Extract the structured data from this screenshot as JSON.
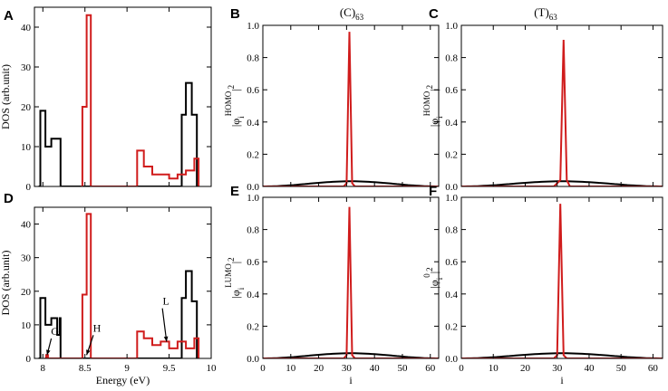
{
  "colors": {
    "red": "#d01c1c",
    "black": "#000000"
  },
  "column_titles": [
    "(C)",
    "63",
    "(T)",
    "63"
  ],
  "chart_data": [
    {
      "id": "A",
      "type": "line",
      "panel_label": "A",
      "xlim": [
        7.9,
        10
      ],
      "ylim": [
        0,
        45
      ],
      "xticks": [
        8,
        8.5,
        9,
        9.5,
        10
      ],
      "xtick_labels": [
        "",
        "",
        "",
        "",
        ""
      ],
      "yticks": [
        0,
        10,
        20,
        30,
        40
      ],
      "ytick_labels": [
        "0",
        "10",
        "20",
        "30",
        "40"
      ],
      "ylabel": "DOS (arb.unit)",
      "xlabel": "",
      "series": [
        {
          "name": "black",
          "color": "black",
          "step": true,
          "x": [
            7.95,
            7.97,
            8.0,
            8.03,
            8.07,
            8.1,
            8.13,
            8.17,
            8.2,
            8.21,
            9.6,
            9.65,
            9.68,
            9.7,
            9.73,
            9.77,
            9.8,
            9.83
          ],
          "y": [
            0,
            19,
            19,
            10,
            10,
            12,
            12,
            12,
            12,
            0,
            0,
            18,
            18,
            26,
            26,
            18,
            18,
            0
          ]
        },
        {
          "name": "red",
          "color": "red",
          "step": true,
          "x": [
            8.45,
            8.47,
            8.5,
            8.52,
            8.55,
            8.57,
            9.1,
            9.12,
            9.15,
            9.2,
            9.25,
            9.3,
            9.35,
            9.4,
            9.45,
            9.5,
            9.55,
            9.6,
            9.65,
            9.7,
            9.75,
            9.8,
            9.83,
            9.85
          ],
          "y": [
            0,
            20,
            20,
            43,
            43,
            0,
            0,
            9,
            9,
            5,
            5,
            3,
            3,
            3,
            3,
            2,
            2,
            3,
            3,
            4,
            4,
            7,
            7,
            0
          ]
        }
      ],
      "annotations": []
    },
    {
      "id": "B",
      "type": "line",
      "panel_label": "B",
      "xlim": [
        0,
        63
      ],
      "ylim": [
        0,
        1
      ],
      "xticks": [
        0,
        10,
        20,
        30,
        40,
        50,
        60
      ],
      "xtick_labels": [
        "",
        "",
        "",
        "",
        "",
        "",
        ""
      ],
      "yticks": [
        0,
        0.2,
        0.4,
        0.6,
        0.8,
        1.0
      ],
      "ytick_labels": [
        "0.0",
        "0.2",
        "0.4",
        "0.6",
        "0.8",
        "1.0"
      ],
      "ylabel_parts": [
        "|φ",
        "i",
        "HOMO",
        "|",
        "2"
      ],
      "xlabel": "",
      "series": [
        {
          "name": "black",
          "color": "black",
          "curve": "sine",
          "peak": 0.032,
          "n": 63
        },
        {
          "name": "red",
          "color": "red",
          "x": [
            0,
            29,
            30,
            31,
            32,
            33,
            63
          ],
          "y": [
            0,
            0,
            0.02,
            0.96,
            0.02,
            0,
            0
          ]
        }
      ],
      "annotations": []
    },
    {
      "id": "C",
      "type": "line",
      "panel_label": "C",
      "xlim": [
        0,
        63
      ],
      "ylim": [
        0,
        1
      ],
      "xticks": [
        0,
        10,
        20,
        30,
        40,
        50,
        60
      ],
      "xtick_labels": [
        "",
        "",
        "",
        "",
        "",
        "",
        ""
      ],
      "yticks": [
        0,
        0.2,
        0.4,
        0.6,
        0.8,
        1.0
      ],
      "ytick_labels": [
        "0.0",
        "0.2",
        "0.4",
        "0.6",
        "0.8",
        "1.0"
      ],
      "ylabel_parts": [
        "|φ",
        "i",
        "HOMO",
        "|",
        "2"
      ],
      "xlabel": "",
      "series": [
        {
          "name": "black",
          "color": "black",
          "curve": "sine",
          "peak": 0.032,
          "n": 63
        },
        {
          "name": "red",
          "color": "red",
          "x": [
            0,
            29,
            30,
            31,
            32,
            33,
            34,
            63
          ],
          "y": [
            0,
            0,
            0.02,
            0.04,
            0.91,
            0.04,
            0,
            0
          ]
        }
      ],
      "annotations": []
    },
    {
      "id": "D",
      "type": "line",
      "panel_label": "D",
      "xlim": [
        7.9,
        10
      ],
      "ylim": [
        0,
        45
      ],
      "xticks": [
        8,
        8.5,
        9,
        9.5,
        10
      ],
      "xtick_labels": [
        "8",
        "8.5",
        "9",
        "9.5",
        "10"
      ],
      "yticks": [
        0,
        10,
        20,
        30,
        40
      ],
      "ytick_labels": [
        "0",
        "10",
        "20",
        "30",
        "40"
      ],
      "ylabel": "DOS (arb.unit)",
      "xlabel": "Energy (eV)",
      "series": [
        {
          "name": "black",
          "color": "black",
          "step": true,
          "x": [
            7.95,
            7.97,
            8.0,
            8.03,
            8.07,
            8.1,
            8.13,
            8.17,
            8.2,
            8.21,
            9.6,
            9.65,
            9.68,
            9.7,
            9.73,
            9.77,
            9.8,
            9.83
          ],
          "y": [
            0,
            18,
            18,
            10,
            10,
            12,
            12,
            7,
            12,
            0,
            0,
            18,
            18,
            26,
            26,
            17,
            17,
            0
          ]
        },
        {
          "name": "red",
          "color": "red",
          "step": true,
          "x": [
            8.02,
            8.04,
            8.06,
            8.45,
            8.47,
            8.5,
            8.52,
            8.55,
            8.57,
            9.1,
            9.12,
            9.15,
            9.2,
            9.25,
            9.3,
            9.35,
            9.4,
            9.45,
            9.5,
            9.55,
            9.6,
            9.65,
            9.7,
            9.75,
            9.8,
            9.83,
            9.85
          ],
          "y": [
            0,
            1,
            0,
            0,
            19,
            19,
            43,
            43,
            0,
            0,
            8,
            8,
            6,
            6,
            4,
            4,
            5,
            5,
            3,
            3,
            5,
            5,
            3,
            3,
            6,
            6,
            0
          ]
        }
      ],
      "annotations": [
        {
          "text": "G",
          "x": 8.05,
          "y": 1,
          "tx": 8.1,
          "ty": 7
        },
        {
          "text": "H",
          "x": 8.52,
          "y": 1,
          "tx": 8.6,
          "ty": 8
        },
        {
          "text": "L",
          "x": 9.47,
          "y": 5,
          "tx": 9.42,
          "ty": 16
        }
      ]
    },
    {
      "id": "E",
      "type": "line",
      "panel_label": "E",
      "xlim": [
        0,
        63
      ],
      "ylim": [
        0,
        1
      ],
      "xticks": [
        0,
        10,
        20,
        30,
        40,
        50,
        60
      ],
      "xtick_labels": [
        "0",
        "10",
        "20",
        "30",
        "40",
        "50",
        "60"
      ],
      "yticks": [
        0,
        0.2,
        0.4,
        0.6,
        0.8,
        1.0
      ],
      "ytick_labels": [
        "0.0",
        "0.2",
        "0.4",
        "0.6",
        "0.8",
        "1.0"
      ],
      "ylabel_parts": [
        "|φ",
        "i",
        "LUMO",
        "|",
        "2"
      ],
      "xlabel": "i",
      "series": [
        {
          "name": "black",
          "color": "black",
          "curve": "sine",
          "peak": 0.032,
          "n": 63
        },
        {
          "name": "red",
          "color": "red",
          "x": [
            0,
            29,
            30,
            31,
            32,
            33,
            63
          ],
          "y": [
            0,
            0,
            0.02,
            0.94,
            0.02,
            0,
            0
          ]
        }
      ],
      "annotations": []
    },
    {
      "id": "F",
      "type": "line",
      "panel_label": "F",
      "xlim": [
        0,
        63
      ],
      "ylim": [
        0,
        1
      ],
      "xticks": [
        0,
        10,
        20,
        30,
        40,
        50,
        60
      ],
      "xtick_labels": [
        "0",
        "10",
        "20",
        "30",
        "40",
        "50",
        "60"
      ],
      "yticks": [
        0,
        0.2,
        0.4,
        0.6,
        0.8,
        1.0
      ],
      "ytick_labels": [
        "0.0",
        "0.2",
        "0.4",
        "0.6",
        "0.8",
        "1.0"
      ],
      "ylabel_parts": [
        "|φ",
        "i",
        "0",
        "|",
        "2"
      ],
      "xlabel": "i",
      "series": [
        {
          "name": "black",
          "color": "black",
          "curve": "sine",
          "peak": 0.032,
          "n": 63
        },
        {
          "name": "red",
          "color": "red",
          "x": [
            0,
            29,
            30,
            31,
            32,
            33,
            63
          ],
          "y": [
            0,
            0,
            0.02,
            0.96,
            0.02,
            0,
            0
          ]
        }
      ],
      "annotations": []
    }
  ]
}
